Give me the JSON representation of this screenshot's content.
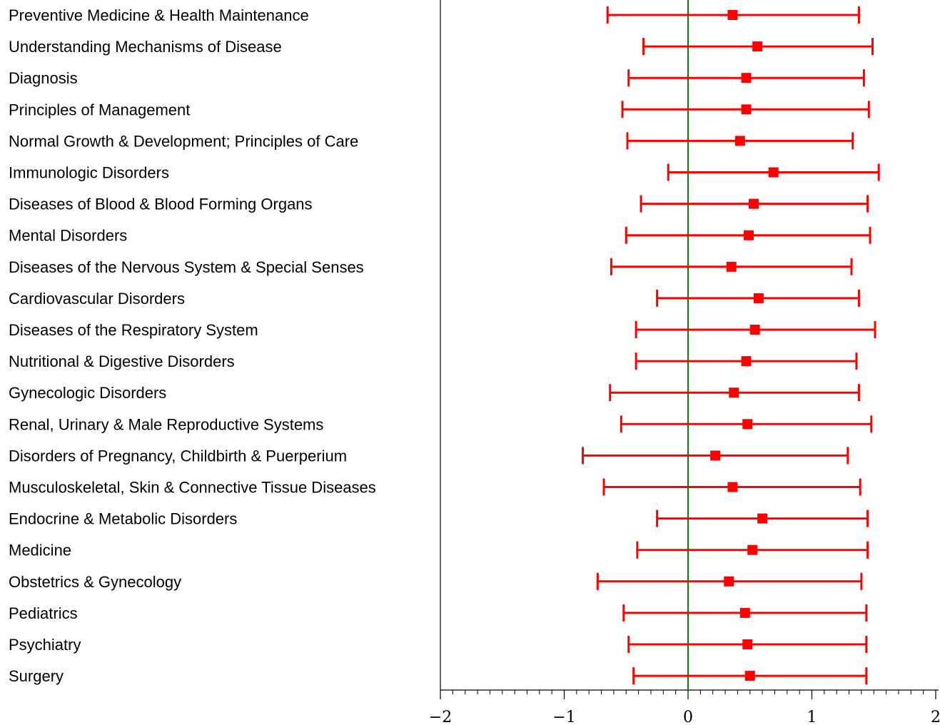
{
  "chart_data": {
    "type": "forest",
    "title": "",
    "xlabel": "",
    "ylabel": "",
    "xlim": [
      -2,
      2
    ],
    "x_ticks": [
      -2,
      -1,
      0,
      1,
      2
    ],
    "x_tick_labels": [
      "−2",
      "−1",
      "0",
      "1",
      "2"
    ],
    "minor_tick_step": 0.1,
    "reference_line": 0,
    "grid": false,
    "legend": "none",
    "colors": {
      "interval": "#ff0000",
      "reference": "#008000",
      "axis": "#000000"
    },
    "categories": [
      "Preventive Medicine & Health Maintenance",
      "Understanding Mechanisms of Disease",
      "Diagnosis",
      "Principles of Management",
      "Normal Growth & Development; Principles of Care",
      "Immunologic Disorders",
      "Diseases of Blood & Blood Forming Organs",
      "Mental Disorders",
      "Diseases of the Nervous System & Special Senses",
      "Cardiovascular Disorders",
      "Diseases of the Respiratory System",
      "Nutritional & Digestive Disorders",
      "Gynecologic Disorders",
      "Renal, Urinary & Male Reproductive Systems",
      "Disorders of Pregnancy, Childbirth & Puerperium",
      "Musculoskeletal, Skin & Connective Tissue Diseases",
      "Endocrine & Metabolic Disorders",
      "Medicine",
      "Obstetrics & Gynecology",
      "Pediatrics",
      "Psychiatry",
      "Surgery"
    ],
    "estimates": [
      0.36,
      0.56,
      0.47,
      0.47,
      0.42,
      0.69,
      0.53,
      0.49,
      0.35,
      0.57,
      0.54,
      0.47,
      0.37,
      0.48,
      0.22,
      0.36,
      0.6,
      0.52,
      0.33,
      0.46,
      0.48,
      0.5
    ],
    "lower": [
      -0.65,
      -0.36,
      -0.48,
      -0.53,
      -0.49,
      -0.16,
      -0.38,
      -0.5,
      -0.62,
      -0.25,
      -0.42,
      -0.42,
      -0.63,
      -0.54,
      -0.85,
      -0.68,
      -0.25,
      -0.41,
      -0.73,
      -0.52,
      -0.48,
      -0.44
    ],
    "upper": [
      1.38,
      1.49,
      1.42,
      1.46,
      1.33,
      1.54,
      1.45,
      1.47,
      1.32,
      1.38,
      1.51,
      1.36,
      1.38,
      1.48,
      1.29,
      1.39,
      1.45,
      1.45,
      1.4,
      1.44,
      1.44,
      1.44
    ]
  }
}
